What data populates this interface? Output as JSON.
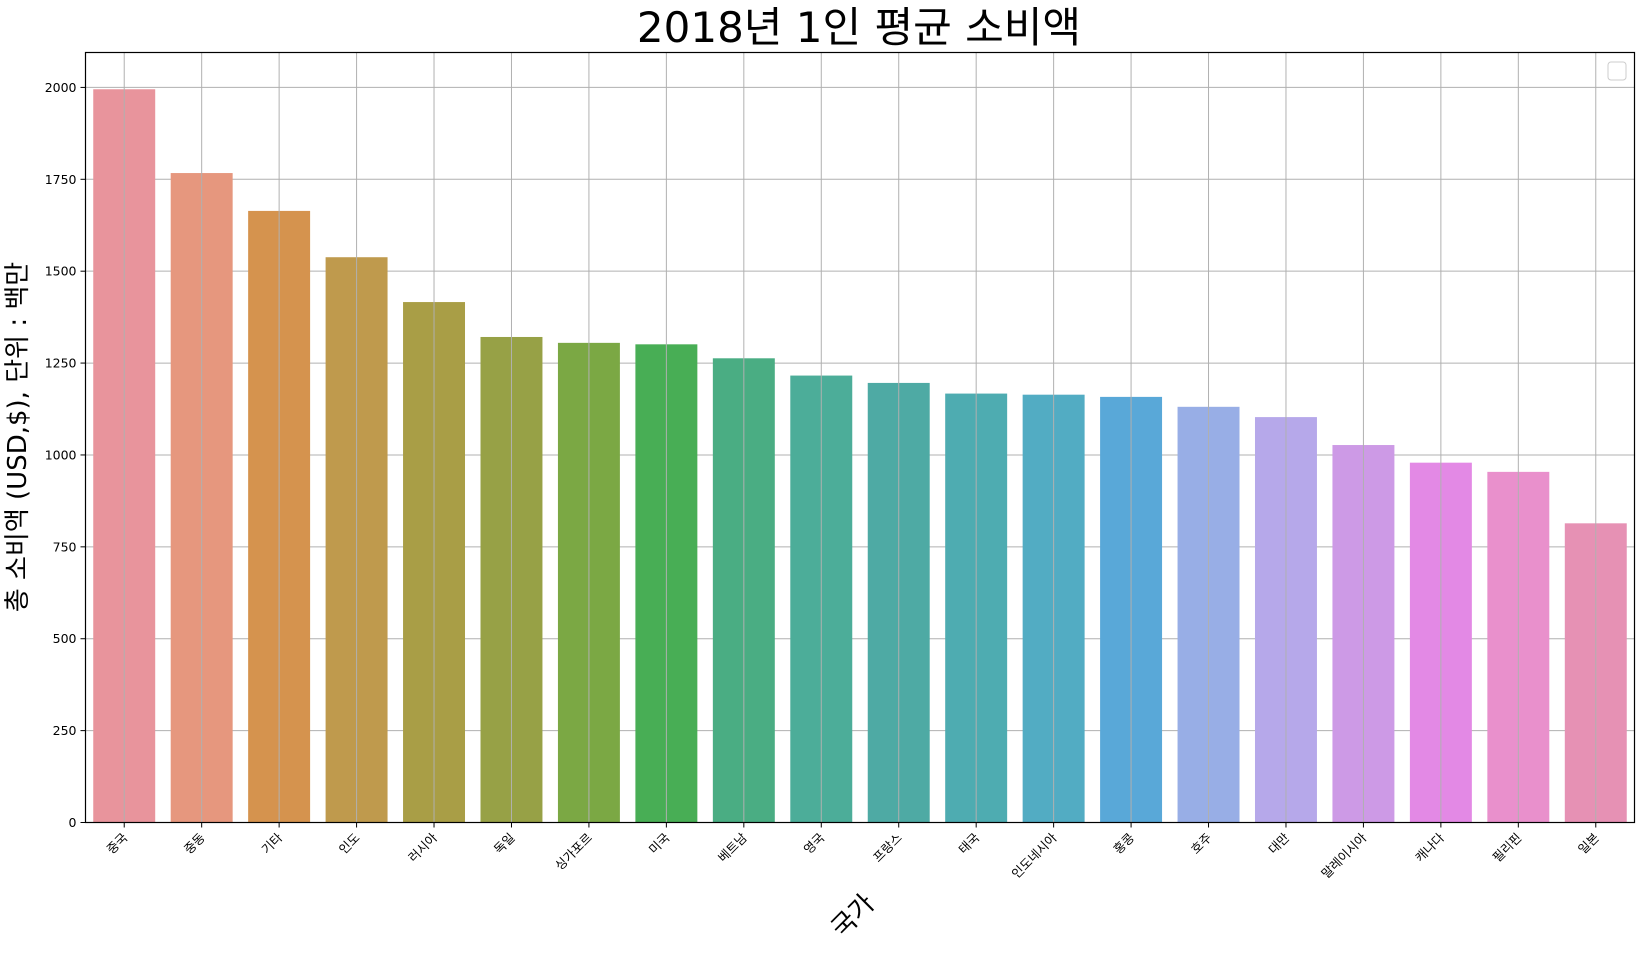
{
  "chart_data": {
    "type": "bar",
    "title": "2018년 1인 평균 소비액",
    "xlabel": "국가",
    "ylabel": "총 소비액 (USD,$), 단위 : 백만",
    "categories": [
      "중국",
      "중동",
      "기타",
      "인도",
      "러시아",
      "독일",
      "싱가포르",
      "미국",
      "베트남",
      "영국",
      "프랑스",
      "태국",
      "인도네시아",
      "홍콩",
      "호주",
      "대만",
      "말레이시아",
      "캐나다",
      "필리핀",
      "일본"
    ],
    "values": [
      1995,
      1767,
      1664,
      1538,
      1416,
      1321,
      1305,
      1301,
      1263,
      1216,
      1196,
      1167,
      1164,
      1158,
      1131,
      1103,
      1027,
      979,
      954,
      814
    ],
    "colors": [
      "#e8949c",
      "#e6977e",
      "#d5934e",
      "#bf9a4d",
      "#a99e46",
      "#97a146",
      "#7ba844",
      "#48ae55",
      "#4aad83",
      "#4cad99",
      "#4eaaa4",
      "#4eacb1",
      "#52acc3",
      "#59a8d8",
      "#98aee6",
      "#b6a8ea",
      "#cd9ae6",
      "#e389e5",
      "#e990cc",
      "#e691b4"
    ],
    "yticks": [
      0,
      250,
      500,
      750,
      1000,
      1250,
      1500,
      1750,
      2000
    ],
    "ylim": [
      0,
      2095
    ],
    "grid": true,
    "legend": "top-right"
  }
}
